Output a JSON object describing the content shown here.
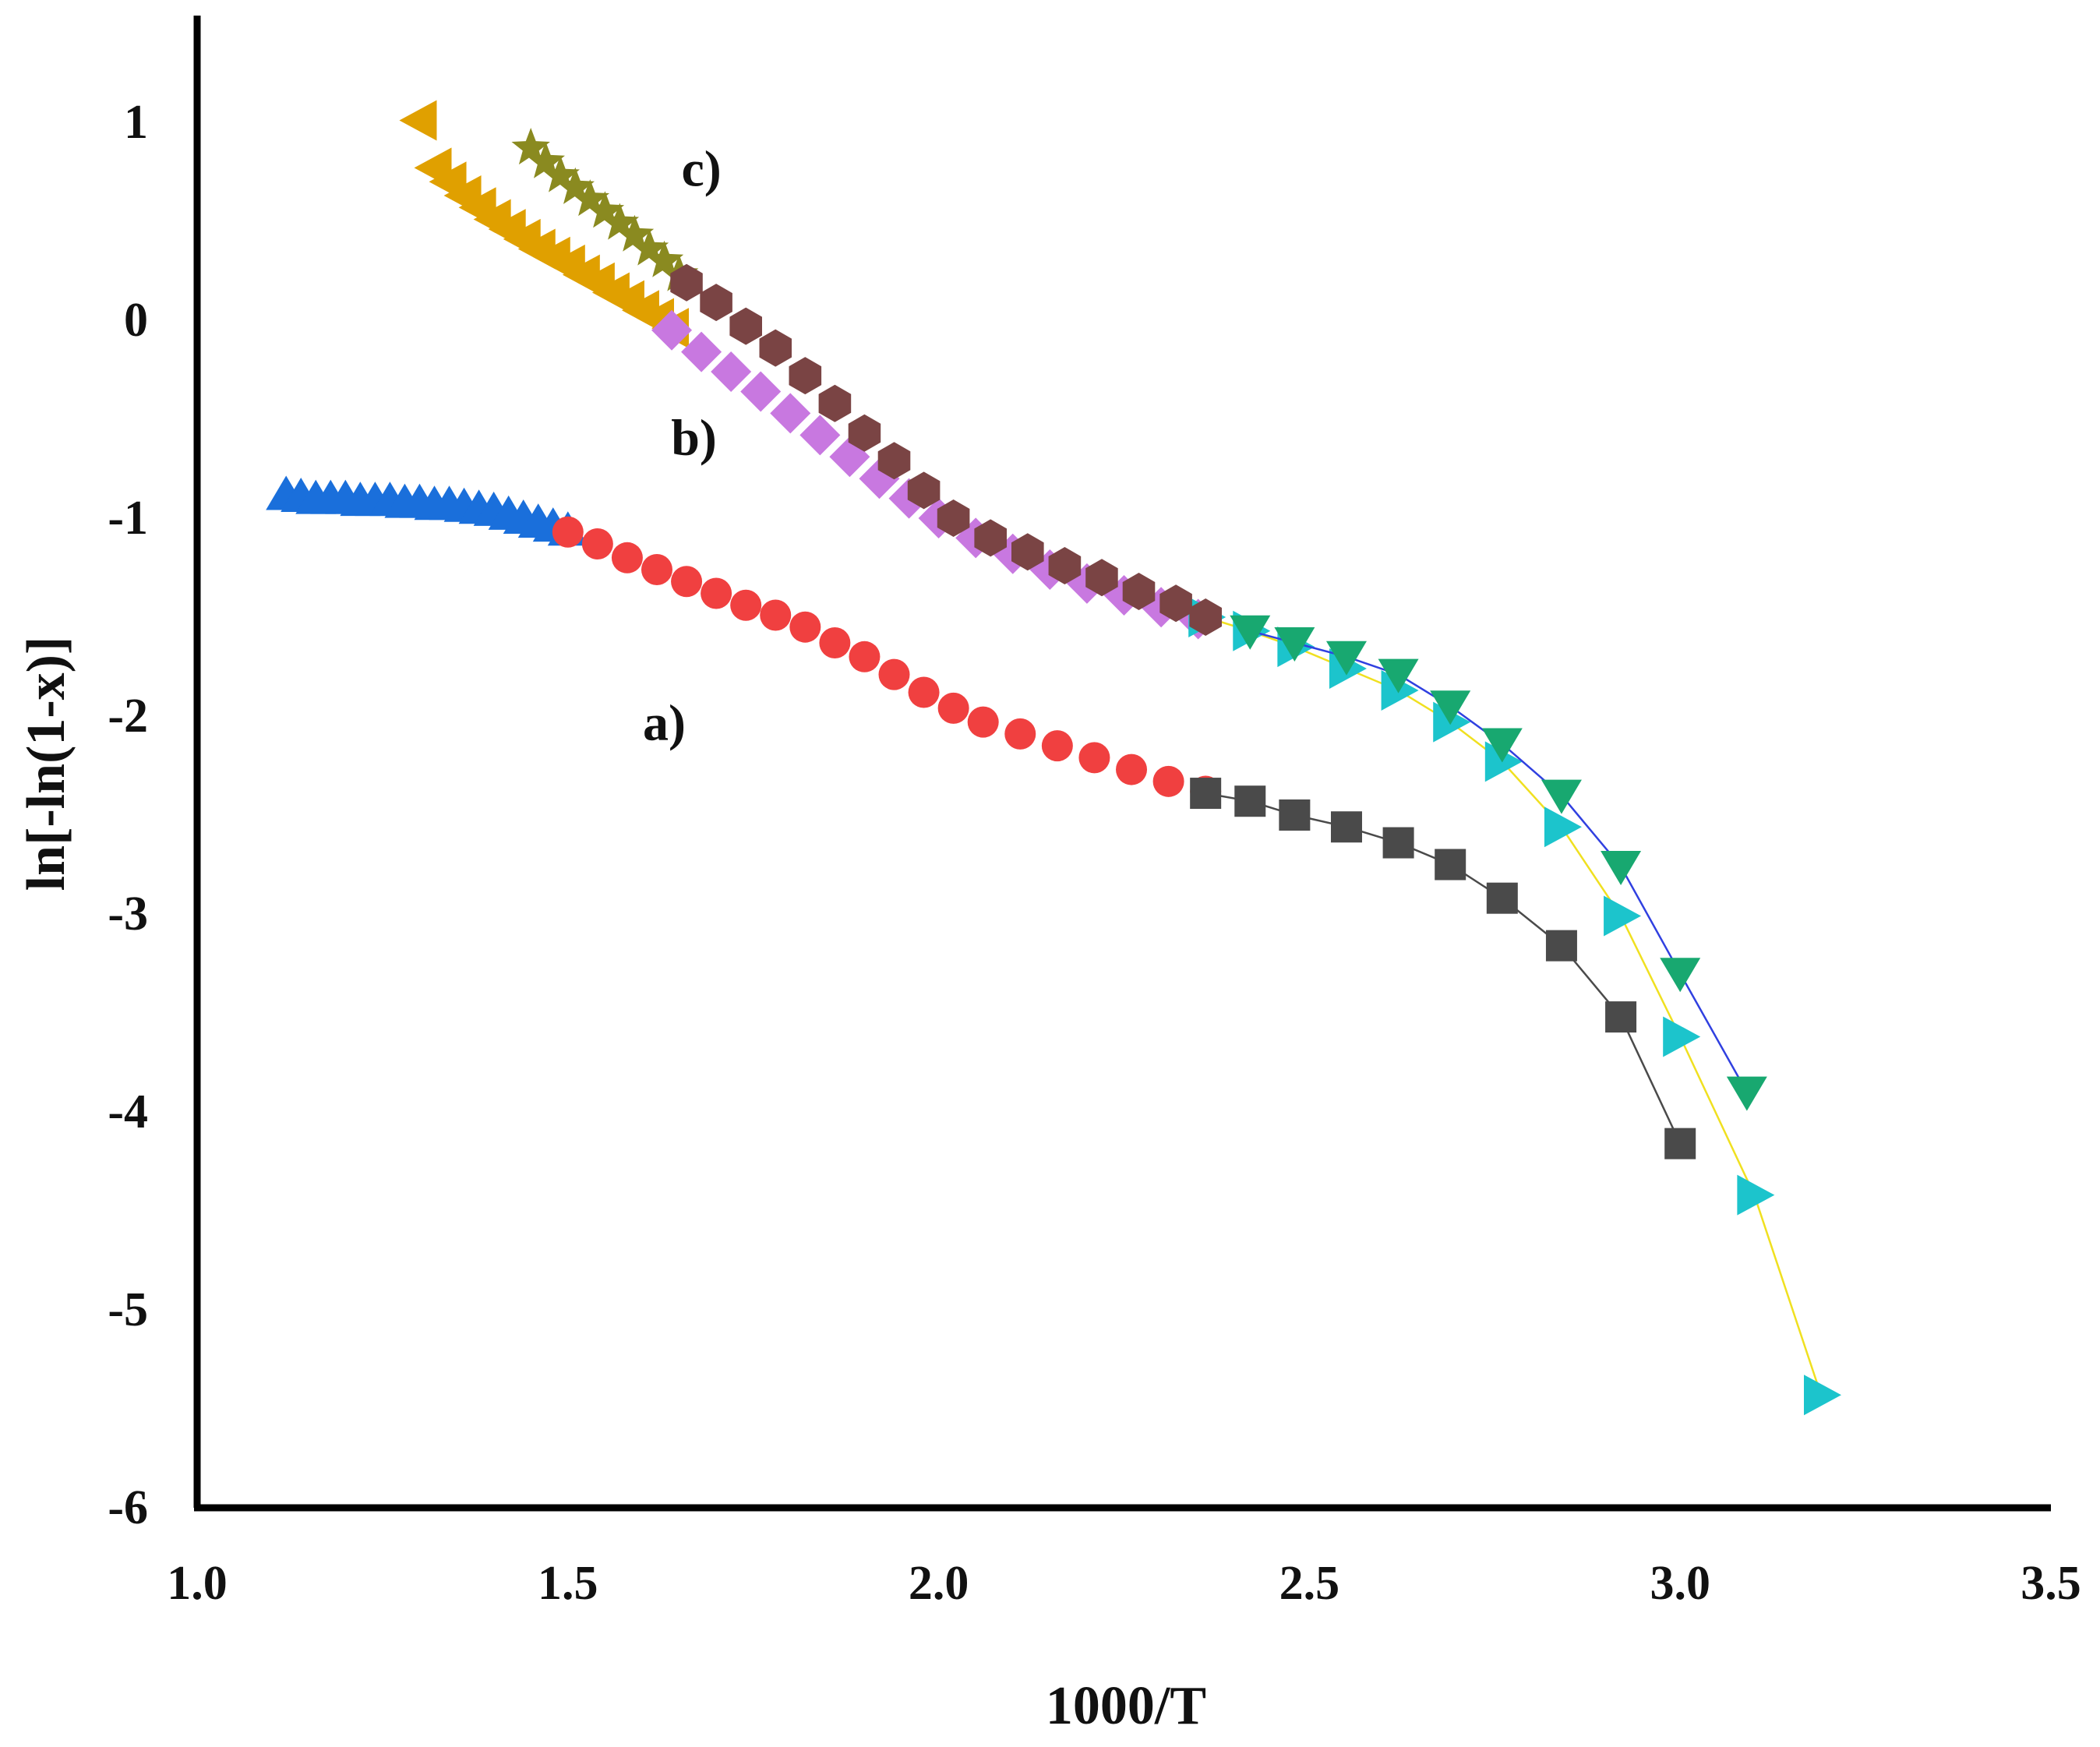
{
  "chart_data": {
    "type": "scatter",
    "title": "",
    "xlabel": "1000/T",
    "ylabel": "ln[-ln(1-x)]",
    "xlim": [
      1.0,
      3.5
    ],
    "ylim": [
      -6,
      1.5
    ],
    "xticks": [
      "1.0",
      "1.5",
      "2.0",
      "2.5",
      "3.0",
      "3.5"
    ],
    "xtick_values": [
      1.0,
      1.5,
      2.0,
      2.5,
      3.0,
      3.5
    ],
    "yticks": [
      "1",
      "0",
      "-1",
      "-2",
      "-3",
      "-4",
      "-5",
      "-6"
    ],
    "ytick_values": [
      1,
      0,
      -1,
      -2,
      -3,
      -4,
      -5,
      -6
    ],
    "grid": false,
    "annotations": [
      {
        "text": "a)",
        "x": 1.63,
        "y": -2.12
      },
      {
        "text": "b)",
        "x": 1.67,
        "y": -0.68
      },
      {
        "text": "c)",
        "x": 1.68,
        "y": 0.68
      }
    ],
    "series": [
      {
        "name": "a-blue-triangles",
        "marker": "triangle-up",
        "color": "#1a6fdb",
        "line": false,
        "x": [
          1.12,
          1.14,
          1.16,
          1.18,
          1.2,
          1.22,
          1.24,
          1.26,
          1.28,
          1.3,
          1.32,
          1.34,
          1.36,
          1.38,
          1.4,
          1.42,
          1.44,
          1.46,
          1.48,
          1.5
        ],
        "y": [
          -0.88,
          -0.89,
          -0.9,
          -0.9,
          -0.9,
          -0.91,
          -0.91,
          -0.91,
          -0.92,
          -0.92,
          -0.93,
          -0.93,
          -0.94,
          -0.95,
          -0.96,
          -0.98,
          -1.0,
          -1.02,
          -1.04,
          -1.06
        ]
      },
      {
        "name": "a-red-circles",
        "marker": "circle",
        "color": "#f04040",
        "line": false,
        "x": [
          1.5,
          1.54,
          1.58,
          1.62,
          1.66,
          1.7,
          1.74,
          1.78,
          1.82,
          1.86,
          1.9,
          1.94,
          1.98,
          2.02,
          2.06,
          2.11,
          2.16,
          2.21,
          2.26,
          2.31,
          2.36
        ],
        "y": [
          -1.07,
          -1.13,
          -1.2,
          -1.26,
          -1.32,
          -1.38,
          -1.44,
          -1.49,
          -1.55,
          -1.63,
          -1.7,
          -1.79,
          -1.88,
          -1.96,
          -2.03,
          -2.09,
          -2.15,
          -2.21,
          -2.27,
          -2.33,
          -2.38
        ]
      },
      {
        "name": "a-black-squares",
        "marker": "square",
        "color": "#4a4a4a",
        "line": true,
        "line_color": "#4a4a4a",
        "x": [
          2.36,
          2.42,
          2.48,
          2.55,
          2.62,
          2.69,
          2.76,
          2.84,
          2.92,
          3.0
        ],
        "y": [
          -2.39,
          -2.43,
          -2.5,
          -2.56,
          -2.64,
          -2.75,
          -2.92,
          -3.16,
          -3.52,
          -4.16
        ]
      },
      {
        "name": "b-orange-triangles",
        "marker": "triangle-left",
        "color": "#e0a000",
        "line": false,
        "x": [
          1.3,
          1.32,
          1.34,
          1.36,
          1.38,
          1.4,
          1.42,
          1.44,
          1.46,
          1.48,
          1.5,
          1.52,
          1.54,
          1.56,
          1.58,
          1.6,
          1.62,
          1.64
        ],
        "y": [
          1.01,
          0.77,
          0.7,
          0.63,
          0.57,
          0.51,
          0.46,
          0.41,
          0.36,
          0.32,
          0.28,
          0.23,
          0.19,
          0.14,
          0.1,
          0.05,
          0.01,
          -0.04
        ]
      },
      {
        "name": "b-violet-diamonds",
        "marker": "diamond",
        "color": "#c878e0",
        "line": false,
        "x": [
          1.64,
          1.68,
          1.72,
          1.76,
          1.8,
          1.84,
          1.88,
          1.92,
          1.96,
          2.0,
          2.05,
          2.1,
          2.15,
          2.2,
          2.25,
          2.3,
          2.35
        ],
        "y": [
          -0.05,
          -0.16,
          -0.26,
          -0.36,
          -0.47,
          -0.58,
          -0.69,
          -0.8,
          -0.9,
          -1.0,
          -1.1,
          -1.18,
          -1.26,
          -1.33,
          -1.39,
          -1.45,
          -1.51
        ]
      },
      {
        "name": "b-cyan-triangles",
        "marker": "triangle-right",
        "color": "#1cc4cc",
        "line": true,
        "line_color": "#f0e020",
        "x": [
          2.36,
          2.42,
          2.48,
          2.55,
          2.62,
          2.69,
          2.76,
          2.84,
          2.92,
          3.0,
          3.1,
          3.19
        ],
        "y": [
          -1.5,
          -1.57,
          -1.65,
          -1.76,
          -1.87,
          -2.03,
          -2.23,
          -2.56,
          -3.01,
          -3.62,
          -4.42,
          -5.43
        ]
      },
      {
        "name": "c-olive-stars",
        "marker": "star",
        "color": "#8a8a20",
        "line": false,
        "x": [
          1.45,
          1.47,
          1.49,
          1.51,
          1.53,
          1.55,
          1.57,
          1.59,
          1.61,
          1.63,
          1.65
        ],
        "y": [
          0.87,
          0.8,
          0.73,
          0.67,
          0.61,
          0.55,
          0.49,
          0.43,
          0.36,
          0.3,
          0.23
        ]
      },
      {
        "name": "c-brown-hexagons",
        "marker": "hexagon",
        "color": "#7a4444",
        "line": false,
        "x": [
          1.66,
          1.7,
          1.74,
          1.78,
          1.82,
          1.86,
          1.9,
          1.94,
          1.98,
          2.02,
          2.07,
          2.12,
          2.17,
          2.22,
          2.27,
          2.32,
          2.36
        ],
        "y": [
          0.19,
          0.09,
          -0.03,
          -0.14,
          -0.28,
          -0.42,
          -0.57,
          -0.71,
          -0.86,
          -1.0,
          -1.1,
          -1.17,
          -1.24,
          -1.3,
          -1.37,
          -1.43,
          -1.5
        ]
      },
      {
        "name": "c-green-triangles",
        "marker": "triangle-down",
        "color": "#18a870",
        "line": true,
        "line_color": "#3040e0",
        "x": [
          2.42,
          2.48,
          2.55,
          2.62,
          2.69,
          2.76,
          2.84,
          2.92,
          3.0,
          3.09
        ],
        "y": [
          -1.57,
          -1.63,
          -1.7,
          -1.79,
          -1.95,
          -2.14,
          -2.4,
          -2.76,
          -3.3,
          -3.9
        ]
      }
    ]
  }
}
